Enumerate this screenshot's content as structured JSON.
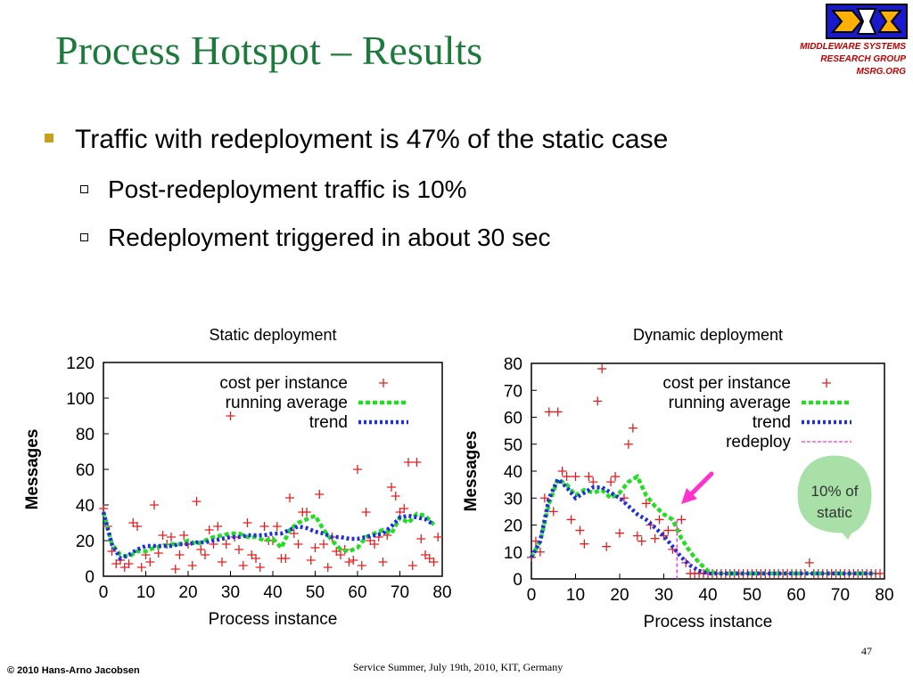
{
  "slide": {
    "title": "Process Hotspot – Results",
    "logo_text": [
      "MIDDLEWARE SYSTEMS",
      "RESEARCH GROUP",
      "MSRG.ORG"
    ],
    "bullet": "Traffic with redeployment is 47% of the static case",
    "subbullets": [
      "Post-redeployment traffic is 10%",
      "Redeployment triggered in about 30 sec"
    ],
    "footer_left": "© 2010 Hans-Arno Jacobsen",
    "footer_center": "Service Summer, July 19th, 2010, KIT, Germany",
    "page_number": "47",
    "callout": [
      "10% of",
      "static"
    ]
  },
  "colors": {
    "title": "#1c7a3c",
    "cost": "#e02020",
    "running_avg": "#22dd22",
    "trend": "#1e2ee0",
    "redeploy": "#ff33cc",
    "callout_fill": "#a8e0a8",
    "arrow": "#ff33cc"
  },
  "chart_data": [
    {
      "type": "scatter",
      "title": "Static deployment",
      "xlabel": "Process instance",
      "ylabel": "Messages",
      "xlim": [
        0,
        80
      ],
      "ylim": [
        0,
        120
      ],
      "xticks": [
        0,
        10,
        20,
        30,
        40,
        50,
        60,
        70,
        80
      ],
      "yticks": [
        0,
        20,
        40,
        60,
        80,
        100,
        120
      ],
      "legend_position": "top-right",
      "series": [
        {
          "name": "cost per instance",
          "style": "points",
          "x": [
            0,
            1,
            2,
            3,
            4,
            5,
            6,
            7,
            8,
            9,
            10,
            11,
            12,
            13,
            14,
            15,
            16,
            17,
            18,
            19,
            20,
            21,
            22,
            23,
            24,
            25,
            26,
            27,
            28,
            29,
            30,
            31,
            32,
            33,
            34,
            35,
            36,
            37,
            38,
            39,
            40,
            41,
            42,
            43,
            44,
            45,
            46,
            47,
            48,
            49,
            50,
            51,
            52,
            53,
            54,
            55,
            56,
            57,
            58,
            59,
            60,
            61,
            62,
            63,
            64,
            65,
            66,
            67,
            68,
            69,
            70,
            71,
            72,
            73,
            74,
            75,
            76,
            77,
            78,
            79
          ],
          "y": [
            38,
            28,
            14,
            7,
            9,
            5,
            7,
            30,
            28,
            5,
            12,
            8,
            40,
            13,
            23,
            18,
            22,
            4,
            12,
            23,
            18,
            6,
            42,
            15,
            12,
            26,
            18,
            28,
            8,
            18,
            90,
            22,
            15,
            6,
            30,
            12,
            10,
            5,
            28,
            20,
            20,
            28,
            10,
            10,
            44,
            24,
            18,
            36,
            36,
            9,
            16,
            46,
            18,
            5,
            22,
            14,
            12,
            15,
            8,
            9,
            60,
            6,
            36,
            20,
            18,
            22,
            8,
            23,
            50,
            45,
            36,
            38,
            64,
            6,
            64,
            21,
            12,
            10,
            8,
            22
          ]
        },
        {
          "name": "running average",
          "style": "dashed",
          "x": [
            0,
            2,
            4,
            6,
            8,
            10,
            12,
            14,
            16,
            18,
            20,
            22,
            24,
            26,
            28,
            30,
            32,
            34,
            36,
            38,
            40,
            42,
            44,
            46,
            48,
            50,
            52,
            54,
            56,
            58,
            60,
            62,
            64,
            66,
            68,
            70,
            72,
            74,
            76,
            78
          ],
          "y": [
            36,
            18,
            12,
            11,
            14,
            14,
            16,
            17,
            18,
            18,
            20,
            18,
            20,
            22,
            23,
            24,
            24,
            22,
            22,
            20,
            21,
            16,
            26,
            30,
            32,
            34,
            26,
            20,
            15,
            14,
            16,
            22,
            24,
            26,
            24,
            33,
            30,
            35,
            34,
            29
          ]
        },
        {
          "name": "trend",
          "style": "dotted",
          "x": [
            0,
            2,
            4,
            6,
            8,
            10,
            12,
            14,
            16,
            18,
            20,
            22,
            24,
            26,
            28,
            30,
            32,
            34,
            36,
            38,
            40,
            42,
            44,
            46,
            48,
            50,
            52,
            54,
            56,
            58,
            60,
            62,
            64,
            66,
            68,
            70,
            72,
            74,
            76,
            78
          ],
          "y": [
            36,
            18,
            10,
            12,
            15,
            17,
            17,
            17,
            17,
            18,
            18,
            19,
            19,
            20,
            21,
            22,
            22,
            23,
            23,
            23,
            24,
            24,
            26,
            28,
            27,
            25,
            24,
            22,
            22,
            21,
            21,
            22,
            23,
            24,
            28,
            33,
            34,
            33,
            32,
            29
          ]
        }
      ]
    },
    {
      "type": "scatter",
      "title": "Dynamic deployment",
      "xlabel": "Process instance",
      "ylabel": "Messages",
      "xlim": [
        0,
        80
      ],
      "ylim": [
        0,
        80
      ],
      "xticks": [
        0,
        10,
        20,
        30,
        40,
        50,
        60,
        70,
        80
      ],
      "yticks": [
        0,
        10,
        20,
        30,
        40,
        50,
        60,
        70,
        80
      ],
      "legend_position": "top-right",
      "series": [
        {
          "name": "cost per instance",
          "style": "points",
          "x": [
            0,
            1,
            2,
            3,
            4,
            5,
            6,
            7,
            8,
            9,
            10,
            11,
            12,
            13,
            14,
            15,
            16,
            17,
            18,
            19,
            20,
            21,
            22,
            23,
            24,
            25,
            26,
            27,
            28,
            29,
            30,
            31,
            32,
            33,
            34,
            35,
            36,
            37,
            38,
            39,
            40,
            41,
            42,
            43,
            44,
            45,
            46,
            47,
            48,
            49,
            50,
            51,
            52,
            53,
            54,
            55,
            56,
            57,
            58,
            59,
            60,
            61,
            62,
            63,
            64,
            65,
            66,
            67,
            68,
            69,
            70,
            71,
            72,
            73,
            74,
            75,
            76,
            77,
            78,
            79
          ],
          "y": [
            8,
            14,
            10,
            30,
            62,
            25,
            62,
            40,
            38,
            22,
            38,
            18,
            13,
            38,
            36,
            66,
            78,
            12,
            36,
            38,
            17,
            30,
            50,
            56,
            16,
            14,
            28,
            20,
            15,
            22,
            16,
            18,
            11,
            18,
            22,
            6,
            2,
            2,
            2,
            2,
            2,
            2,
            2,
            2,
            2,
            2,
            2,
            2,
            2,
            2,
            2,
            2,
            2,
            2,
            2,
            2,
            2,
            2,
            2,
            2,
            2,
            2,
            2,
            6,
            2,
            2,
            2,
            2,
            2,
            2,
            2,
            2,
            2,
            2,
            2,
            2,
            2,
            2,
            2,
            2
          ]
        },
        {
          "name": "running average",
          "style": "dashed",
          "x": [
            0,
            2,
            4,
            6,
            8,
            10,
            12,
            14,
            16,
            18,
            20,
            22,
            24,
            26,
            28,
            30,
            32,
            34,
            36,
            38,
            40,
            42,
            44,
            46,
            48,
            50,
            52,
            54,
            56,
            58,
            60,
            62,
            64,
            66,
            68,
            70,
            72,
            74,
            76,
            78
          ],
          "y": [
            8,
            14,
            28,
            37,
            35,
            31,
            33,
            32,
            33,
            30,
            32,
            36,
            38,
            31,
            27,
            24,
            22,
            15,
            10,
            6,
            3,
            2,
            2,
            2,
            2,
            2,
            2,
            2,
            2,
            2,
            2,
            2,
            2,
            2,
            2,
            2,
            2,
            2,
            2,
            2
          ]
        },
        {
          "name": "trend",
          "style": "dotted",
          "x": [
            0,
            2,
            4,
            6,
            8,
            10,
            12,
            14,
            16,
            18,
            20,
            22,
            24,
            26,
            28,
            30,
            32,
            34,
            36,
            38,
            40,
            42,
            44,
            46,
            48,
            50,
            52,
            54,
            56,
            58,
            60,
            62,
            64,
            66,
            68,
            70,
            72,
            74,
            76,
            78
          ],
          "y": [
            8,
            14,
            30,
            37,
            34,
            30,
            32,
            34,
            34,
            32,
            30,
            27,
            24,
            22,
            19,
            16,
            12,
            8,
            5,
            3,
            2,
            2,
            2,
            2,
            2,
            2,
            2,
            2,
            2,
            2,
            2,
            2,
            2,
            2,
            2,
            2,
            2,
            2,
            2,
            2
          ]
        },
        {
          "name": "redeploy",
          "style": "vline",
          "x": [
            33
          ],
          "y": [
            22
          ]
        }
      ]
    }
  ]
}
